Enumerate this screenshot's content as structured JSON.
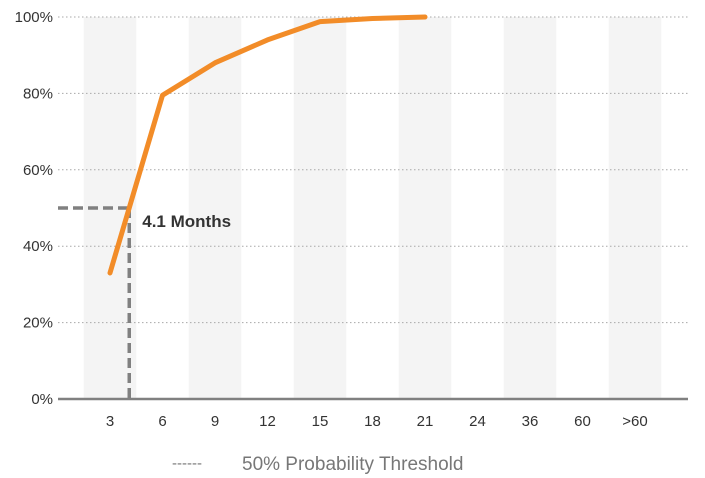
{
  "chart_data": {
    "type": "line",
    "categories": [
      "3",
      "6",
      "9",
      "12",
      "15",
      "18",
      "21",
      "24",
      "36",
      "60",
      ">60"
    ],
    "series": [
      {
        "values": [
          33,
          79.5,
          88,
          94,
          98.8,
          99.6,
          100,
          null,
          null,
          null,
          null
        ]
      }
    ],
    "yticks": [
      "0%",
      "20%",
      "40%",
      "60%",
      "80%",
      "100%"
    ],
    "ylim": [
      0,
      100
    ],
    "threshold": {
      "y": 50,
      "x_months": 4.1,
      "label": "4.1 Months"
    },
    "legend": {
      "marker": "------",
      "label": "50% Probability Threshold",
      "position": "bottom-center"
    },
    "grid": true,
    "colors": {
      "line": "#F28C28",
      "threshold": "#808080",
      "band": "#F4F4F4",
      "grid": "#A8A8A8",
      "axis": "#808080"
    }
  }
}
